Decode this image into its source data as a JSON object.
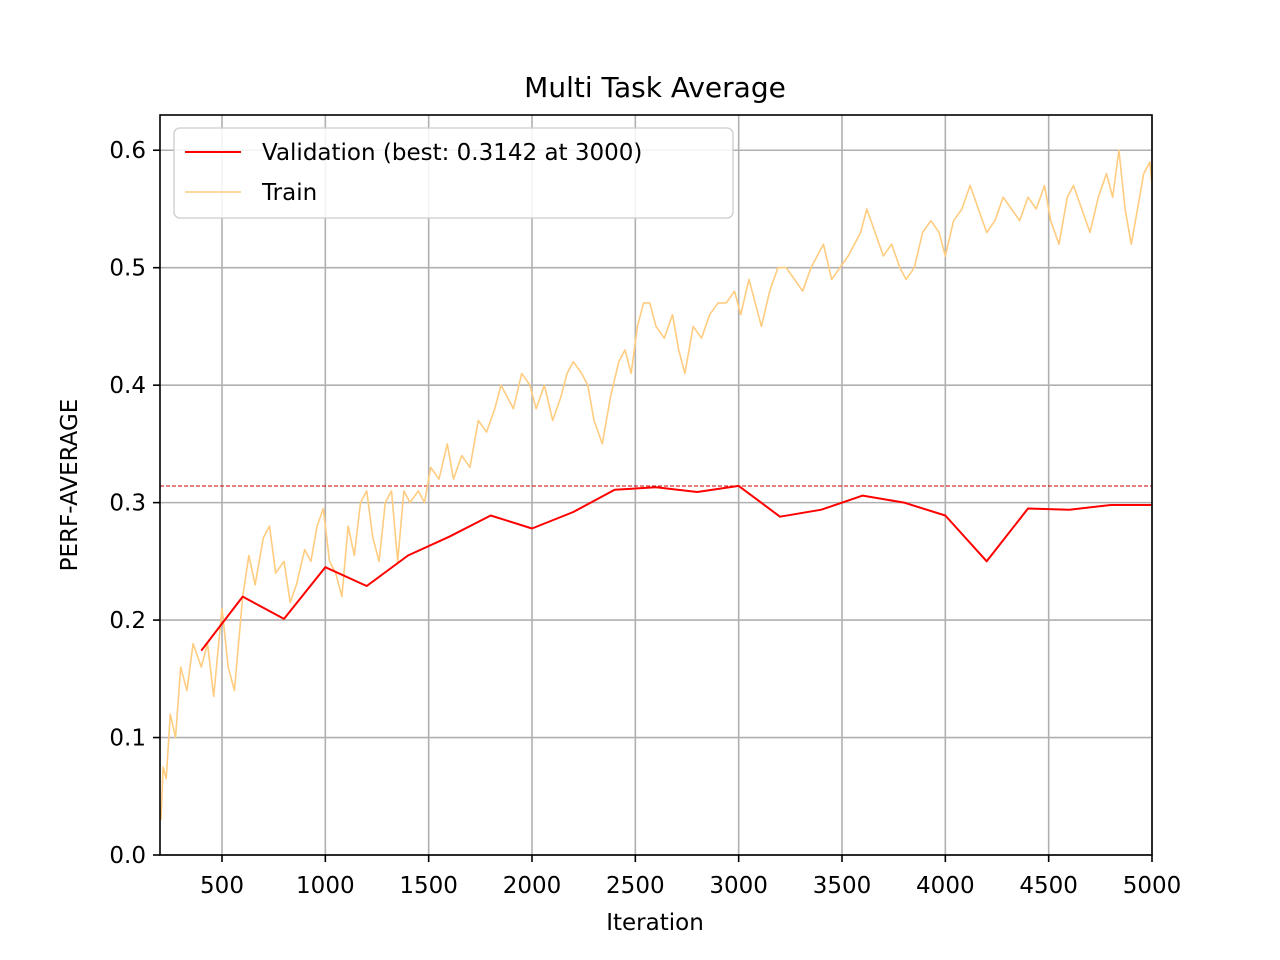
{
  "chart_data": {
    "type": "line",
    "title": "Multi Task Average",
    "xlabel": "Iteration",
    "ylabel": "PERF-AVERAGE",
    "xlim": [
      200,
      5000
    ],
    "ylim": [
      0.0,
      0.63
    ],
    "xticks": [
      500,
      1000,
      1500,
      2000,
      2500,
      3000,
      3500,
      4000,
      4500,
      5000
    ],
    "xtick_labels": [
      "500",
      "1000",
      "1500",
      "2000",
      "2500",
      "3000",
      "3500",
      "4000",
      "4500",
      "5000"
    ],
    "yticks": [
      0.0,
      0.1,
      0.2,
      0.3,
      0.4,
      0.5,
      0.6
    ],
    "ytick_labels": [
      "0.0",
      "0.1",
      "0.2",
      "0.3",
      "0.4",
      "0.5",
      "0.6"
    ],
    "grid": true,
    "legend_position": "top-left",
    "best_line": {
      "y": 0.3142,
      "color": "#cc0000",
      "style": "dashed"
    },
    "series": [
      {
        "name": "Validation (best: 0.3142 at 3000)",
        "color": "#ff0000",
        "x": [
          400,
          600,
          800,
          1000,
          1200,
          1400,
          1600,
          1800,
          2000,
          2200,
          2400,
          2600,
          2800,
          3000,
          3200,
          3400,
          3600,
          3800,
          4000,
          4200,
          4400,
          4600,
          4800,
          5000
        ],
        "y": [
          0.174,
          0.22,
          0.201,
          0.245,
          0.229,
          0.255,
          0.271,
          0.289,
          0.278,
          0.292,
          0.311,
          0.313,
          0.309,
          0.3142,
          0.288,
          0.294,
          0.306,
          0.3,
          0.289,
          0.25,
          0.295,
          0.294,
          0.298,
          0.298
        ]
      },
      {
        "name": "Train",
        "color": "#ffcc80",
        "x": [
          205,
          215,
          230,
          250,
          275,
          300,
          330,
          360,
          400,
          430,
          460,
          500,
          530,
          560,
          600,
          630,
          660,
          700,
          730,
          760,
          800,
          830,
          860,
          900,
          930,
          960,
          990,
          1020,
          1050,
          1080,
          1110,
          1140,
          1170,
          1200,
          1230,
          1260,
          1290,
          1320,
          1350,
          1380,
          1410,
          1450,
          1480,
          1510,
          1550,
          1590,
          1620,
          1660,
          1700,
          1740,
          1780,
          1820,
          1850,
          1880,
          1910,
          1950,
          1990,
          2020,
          2060,
          2100,
          2140,
          2170,
          2200,
          2240,
          2270,
          2300,
          2340,
          2380,
          2420,
          2450,
          2480,
          2510,
          2540,
          2570,
          2600,
          2640,
          2680,
          2710,
          2740,
          2780,
          2820,
          2860,
          2900,
          2940,
          2980,
          3010,
          3050,
          3080,
          3110,
          3150,
          3190,
          3230,
          3270,
          3310,
          3350,
          3380,
          3410,
          3450,
          3490,
          3530,
          3560,
          3590,
          3620,
          3660,
          3700,
          3740,
          3780,
          3810,
          3850,
          3890,
          3930,
          3970,
          4000,
          4040,
          4080,
          4120,
          4160,
          4200,
          4240,
          4280,
          4320,
          4360,
          4400,
          4440,
          4480,
          4510,
          4550,
          4590,
          4620,
          4660,
          4700,
          4740,
          4780,
          4810,
          4840,
          4870,
          4900,
          4930,
          4960,
          4990,
          5000
        ],
        "y": [
          0.03,
          0.075,
          0.065,
          0.12,
          0.1,
          0.16,
          0.14,
          0.18,
          0.16,
          0.18,
          0.135,
          0.21,
          0.16,
          0.14,
          0.22,
          0.255,
          0.23,
          0.27,
          0.28,
          0.24,
          0.25,
          0.215,
          0.23,
          0.26,
          0.25,
          0.28,
          0.295,
          0.25,
          0.24,
          0.22,
          0.28,
          0.255,
          0.3,
          0.31,
          0.27,
          0.25,
          0.3,
          0.31,
          0.25,
          0.31,
          0.3,
          0.31,
          0.3,
          0.33,
          0.32,
          0.35,
          0.32,
          0.34,
          0.33,
          0.37,
          0.36,
          0.38,
          0.4,
          0.39,
          0.38,
          0.41,
          0.4,
          0.38,
          0.4,
          0.37,
          0.39,
          0.41,
          0.42,
          0.41,
          0.4,
          0.37,
          0.35,
          0.39,
          0.42,
          0.43,
          0.41,
          0.45,
          0.47,
          0.47,
          0.45,
          0.44,
          0.46,
          0.43,
          0.41,
          0.45,
          0.44,
          0.46,
          0.47,
          0.47,
          0.48,
          0.46,
          0.49,
          0.47,
          0.45,
          0.48,
          0.5,
          0.5,
          0.49,
          0.48,
          0.5,
          0.51,
          0.52,
          0.49,
          0.5,
          0.51,
          0.52,
          0.53,
          0.55,
          0.53,
          0.51,
          0.52,
          0.5,
          0.49,
          0.5,
          0.53,
          0.54,
          0.53,
          0.51,
          0.54,
          0.55,
          0.57,
          0.55,
          0.53,
          0.54,
          0.56,
          0.55,
          0.54,
          0.56,
          0.55,
          0.57,
          0.54,
          0.52,
          0.56,
          0.57,
          0.55,
          0.53,
          0.56,
          0.58,
          0.56,
          0.6,
          0.55,
          0.52,
          0.55,
          0.58,
          0.59,
          0.57
        ]
      }
    ]
  }
}
